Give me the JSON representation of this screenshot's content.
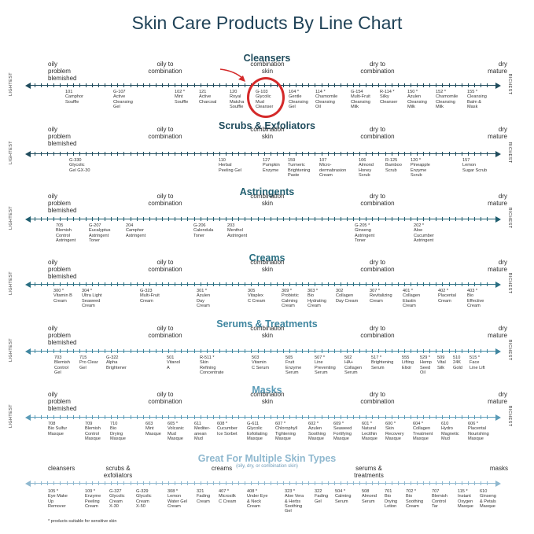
{
  "title": "Skin Care Products By Line Chart",
  "edge_labels": {
    "left": "LIGHTEST",
    "right": "RICHEST"
  },
  "footnote": "* products suitable for sensitive skin",
  "sections": [
    {
      "id": "cleansers",
      "title": "Cleansers",
      "color": "#1f4b5c",
      "categories": [
        "oily\nproblem\nblemished",
        "oily to\ncombination",
        "combination\nskin",
        "dry to\ncombination",
        "dry\nmature"
      ],
      "products": [
        {
          "code": "101",
          "name": "Camphor\nSouffle"
        },
        {
          "code": "G-107",
          "name": "Active\nCleansing\nGel"
        },
        {
          "code": "102 *",
          "name": "Mint\nSouffle"
        },
        {
          "code": "121",
          "name": "Active\nCharcoal"
        },
        {
          "code": "120",
          "name": "Royal\nMatcha\nSouffle"
        },
        {
          "code": "G-103",
          "name": "Glycolic\nMud\nCleanser"
        },
        {
          "code": "104 *",
          "name": "Gentle\nCleansing\nGel"
        },
        {
          "code": "114 *",
          "name": "Chamomile\nCleansing\nOil"
        },
        {
          "code": "G-154",
          "name": "Multi-Fruit\nCleansing\nMilk"
        },
        {
          "code": "R-114 *",
          "name": "Silky\nCleanser"
        },
        {
          "code": "150 *",
          "name": "Azulen\nCleansing\nMilk"
        },
        {
          "code": "152 *",
          "name": "Chamomile\nCleansing\nMilk"
        },
        {
          "code": "155 *",
          "name": "Cleansing\nBalm &\nMask"
        }
      ]
    },
    {
      "id": "scrubs",
      "title": "Scrubs & Exfoliators",
      "color": "#1f4b5c",
      "categories": [
        "oily\nproblem\nblemished",
        "oily to\ncombination",
        "combination\nskin",
        "dry to\ncombination",
        "dry\nmature"
      ],
      "products": [
        {
          "code": "G-330",
          "name": "Glycolic\nGel GX-30"
        },
        {
          "code": "110",
          "name": "Herbal\nPeeling Gel"
        },
        {
          "code": "127",
          "name": "Pumpkin\nEnzyme"
        },
        {
          "code": "159",
          "name": "Turmeric\nBrightening\nPaste"
        },
        {
          "code": "107",
          "name": "Micro-\ndermabrasion\nCream"
        },
        {
          "code": "106",
          "name": "Almond\nHoney\nScrub"
        },
        {
          "code": "R-125",
          "name": "Bamboo\nScrub"
        },
        {
          "code": "120 *",
          "name": "Pineapple\nEnzyme\nScrub"
        },
        {
          "code": "157",
          "name": "Lemon\nSugar Scrub"
        }
      ]
    },
    {
      "id": "astringents",
      "title": "Astringents",
      "color": "#1f5d6e",
      "categories": [
        "oily\nproblem\nblemished",
        "oily to\ncombination",
        "combination\nskin",
        "dry to\ncombination",
        "dry\nmature"
      ],
      "products": [
        {
          "code": "705",
          "name": "Blemish\nControl\nAstringent"
        },
        {
          "code": "G-207",
          "name": "Eucalyptus\nAstringent\nToner"
        },
        {
          "code": "204",
          "name": "Camphor\nAstringent"
        },
        {
          "code": "G-206",
          "name": "Calendula\nToner"
        },
        {
          "code": "203",
          "name": "Menthol\nAstringent"
        },
        {
          "code": "G-205 *",
          "name": "Ginseng\nAstringent\nToner"
        },
        {
          "code": "202 *",
          "name": "Aloe\nCucumber\nAstringent"
        }
      ]
    },
    {
      "id": "creams",
      "title": "Creams",
      "color": "#2a6f82",
      "categories": [
        "oily\nproblem\nblemished",
        "oily to\ncombination",
        "combination\nskin",
        "dry to\ncombination",
        "dry\nmature"
      ],
      "products": [
        {
          "code": "300 *",
          "name": "Vitamin B\nCream"
        },
        {
          "code": "304 *",
          "name": "Ultra Light\nSeaweed\nCream"
        },
        {
          "code": "G-323",
          "name": "Multi-Fruit\nCream"
        },
        {
          "code": "301 *",
          "name": "Azulen\nDay\nCream"
        },
        {
          "code": "305",
          "name": "Vitaplex\nC Cream"
        },
        {
          "code": "309 *",
          "name": "Probiotic\nCalming\nCream"
        },
        {
          "code": "303 *",
          "name": "Bio\nHydrating\nCream"
        },
        {
          "code": "302",
          "name": "Collagen\nDay Cream"
        },
        {
          "code": "307 *",
          "name": "Revitalizing\nCream"
        },
        {
          "code": "401 *",
          "name": "Collagen\nElastin\nCream"
        },
        {
          "code": "402 *",
          "name": "Placental\nCream"
        },
        {
          "code": "403 *",
          "name": "Bio\nEffective\nCream"
        }
      ]
    },
    {
      "id": "serums",
      "title": "Serums & Treatments",
      "color": "#3f86a0",
      "categories": [
        "oily\nproblem\nblemished",
        "oily to\ncombination",
        "combination\nskin",
        "dry to\ncombination",
        "dry\nmature"
      ],
      "products": [
        {
          "code": "703",
          "name": "Blemish\nControl\nGel"
        },
        {
          "code": "715",
          "name": "Pro Clear\nGel"
        },
        {
          "code": "G-322",
          "name": "Alpha\nBrightener"
        },
        {
          "code": "501",
          "name": "Vitanol\nA"
        },
        {
          "code": "R-511 *",
          "name": "Skin\nRefining\nConcentrate"
        },
        {
          "code": "503",
          "name": "Vitamin\nC Serum"
        },
        {
          "code": "505",
          "name": "Fruit\nEnzyme\nSerum"
        },
        {
          "code": "507 *",
          "name": "Line\nPreventing\nSerum"
        },
        {
          "code": "502",
          "name": "HA+\nCollagen\nSerum"
        },
        {
          "code": "517 *",
          "name": "Brightening\nSerum"
        },
        {
          "code": "555",
          "name": "Lifting\nElixir"
        },
        {
          "code": "529 *",
          "name": "Hemp\nSeed\nOil"
        },
        {
          "code": "509",
          "name": "Vital\nSilk"
        },
        {
          "code": "510",
          "name": "24K\nGold"
        },
        {
          "code": "515 *",
          "name": "Face\nLine Lift"
        }
      ]
    },
    {
      "id": "masks",
      "title": "Masks",
      "color": "#5a9bb7",
      "categories": [
        "oily\nproblem\nblemished",
        "oily to\ncombination",
        "combination\nskin",
        "dry to\ncombination",
        "dry\nmature"
      ],
      "products": [
        {
          "code": "708",
          "name": "Bio Sulfur\nMasque"
        },
        {
          "code": "709",
          "name": "Blemish\nControl\nMasque"
        },
        {
          "code": "710",
          "name": "Bio\nDrying\nMasque"
        },
        {
          "code": "603",
          "name": "Mint\nMasque"
        },
        {
          "code": "605 *",
          "name": "Volcanic\nMud\nMasque"
        },
        {
          "code": "611",
          "name": "Mediter-\nanean\nMud"
        },
        {
          "code": "608 *",
          "name": "Cucumber\nIce Sorbet"
        },
        {
          "code": "G-611",
          "name": "Glycolic\nExfoliating\nMasque"
        },
        {
          "code": "607 *",
          "name": "Chlorophyll\nTightening\nMasque"
        },
        {
          "code": "602 *",
          "name": "Azulen\nSoothing\nMasque"
        },
        {
          "code": "609 *",
          "name": "Seaweed\nFortifying\nMasque"
        },
        {
          "code": "601 *",
          "name": "Natural\nLecithin\nMasque"
        },
        {
          "code": "600 *",
          "name": "Skin\nRecovery\nMasque"
        },
        {
          "code": "604 *",
          "name": "Collagen\nTreatment\nMasque"
        },
        {
          "code": "610",
          "name": "Hydro\nMagnetic\nMud"
        },
        {
          "code": "606 *",
          "name": "Placental\nNourishing\nMasque"
        }
      ]
    },
    {
      "id": "multiple",
      "title": "Great For Multiple Skin Types",
      "color": "#8fb8cf",
      "subtitle": "(oily, dry, or combination skin)",
      "categories": [
        "cleansers",
        "scrubs &\nexfoliators",
        "creams",
        "serums &\ntreatments",
        "masks"
      ],
      "products": [
        {
          "code": "105 *",
          "name": "Eye Make\nUp\nRemover"
        },
        {
          "code": "109 *",
          "name": "Enzyme\nPeeling\nCream"
        },
        {
          "code": "G-327",
          "name": "Glycolic\nCream\nX-30"
        },
        {
          "code": "G-329",
          "name": "Glycolic\nCream\nX-50"
        },
        {
          "code": "308 *",
          "name": "Lemon\nWater Gel\nCream"
        },
        {
          "code": "321",
          "name": "Fading\nCream"
        },
        {
          "code": "407 *",
          "name": "Microsilk\nC Cream"
        },
        {
          "code": "408 *",
          "name": "Under Eye\n& Neck\nCream"
        },
        {
          "code": "323 *",
          "name": "Aloe Vera\n& Herbs\nSoothing\nGel"
        },
        {
          "code": "322",
          "name": "Fading\nGel"
        },
        {
          "code": "504 *",
          "name": "Calming\nSerum"
        },
        {
          "code": "508",
          "name": "Almond\nSerum"
        },
        {
          "code": "701",
          "name": "Bio\nDrying\nLotion"
        },
        {
          "code": "702 *",
          "name": "Bio\nSoothing\nCream"
        },
        {
          "code": "707",
          "name": "Blemish\nControl\nTar"
        },
        {
          "code": "115 *",
          "name": "Instant\nOxygen\nMasque"
        },
        {
          "code": "610",
          "name": "Ginseng\n& Petals\nMasque"
        }
      ]
    }
  ]
}
